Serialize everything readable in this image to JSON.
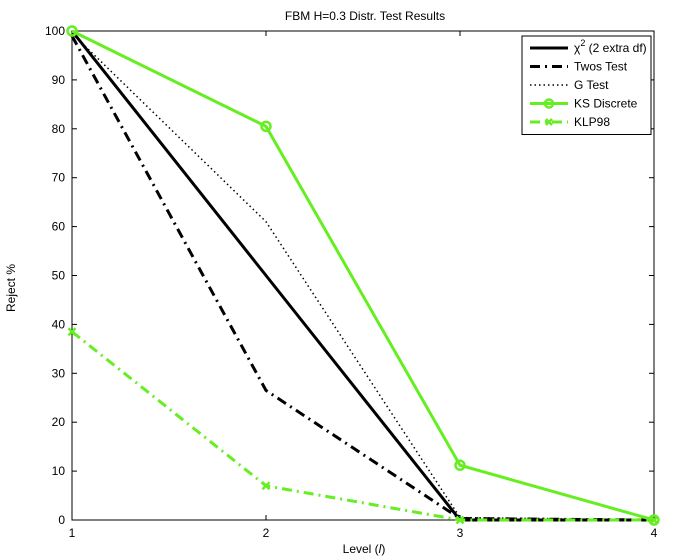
{
  "chart_data": {
    "type": "line",
    "title": "FBM H=0.3 Distr. Test Results",
    "xlabel_prefix": "Level (",
    "xlabel_italic": "l",
    "xlabel_suffix": ")",
    "ylabel": "Reject %",
    "x": [
      1,
      2,
      3,
      4
    ],
    "xlim": [
      1,
      4
    ],
    "ylim": [
      0,
      100
    ],
    "xticks": [
      1,
      2,
      3,
      4
    ],
    "yticks": [
      0,
      10,
      20,
      30,
      40,
      50,
      60,
      70,
      80,
      90,
      100
    ],
    "grid": false,
    "legend_position": "top-right",
    "series": [
      {
        "name": "χ2 (2 extra df)",
        "name_base": "χ",
        "name_sup": "2",
        "name_rest": " (2 extra df)",
        "values": [
          100,
          50,
          0,
          0
        ],
        "color": "#000000",
        "style": "solid",
        "marker": "none"
      },
      {
        "name": "Twos Test",
        "values": [
          99,
          26.5,
          0.3,
          0
        ],
        "color": "#000000",
        "style": "dashdot",
        "marker": "none"
      },
      {
        "name": "G Test",
        "values": [
          99.5,
          61,
          0.5,
          0
        ],
        "color": "#000000",
        "style": "dotted",
        "marker": "none"
      },
      {
        "name": "KS Discrete",
        "values": [
          100,
          80.5,
          11.2,
          0
        ],
        "color": "#66ee22",
        "style": "solid",
        "marker": "circle"
      },
      {
        "name": "KLP98",
        "values": [
          38.5,
          7,
          0,
          0
        ],
        "color": "#66ee22",
        "style": "dashdot",
        "marker": "x"
      }
    ]
  }
}
